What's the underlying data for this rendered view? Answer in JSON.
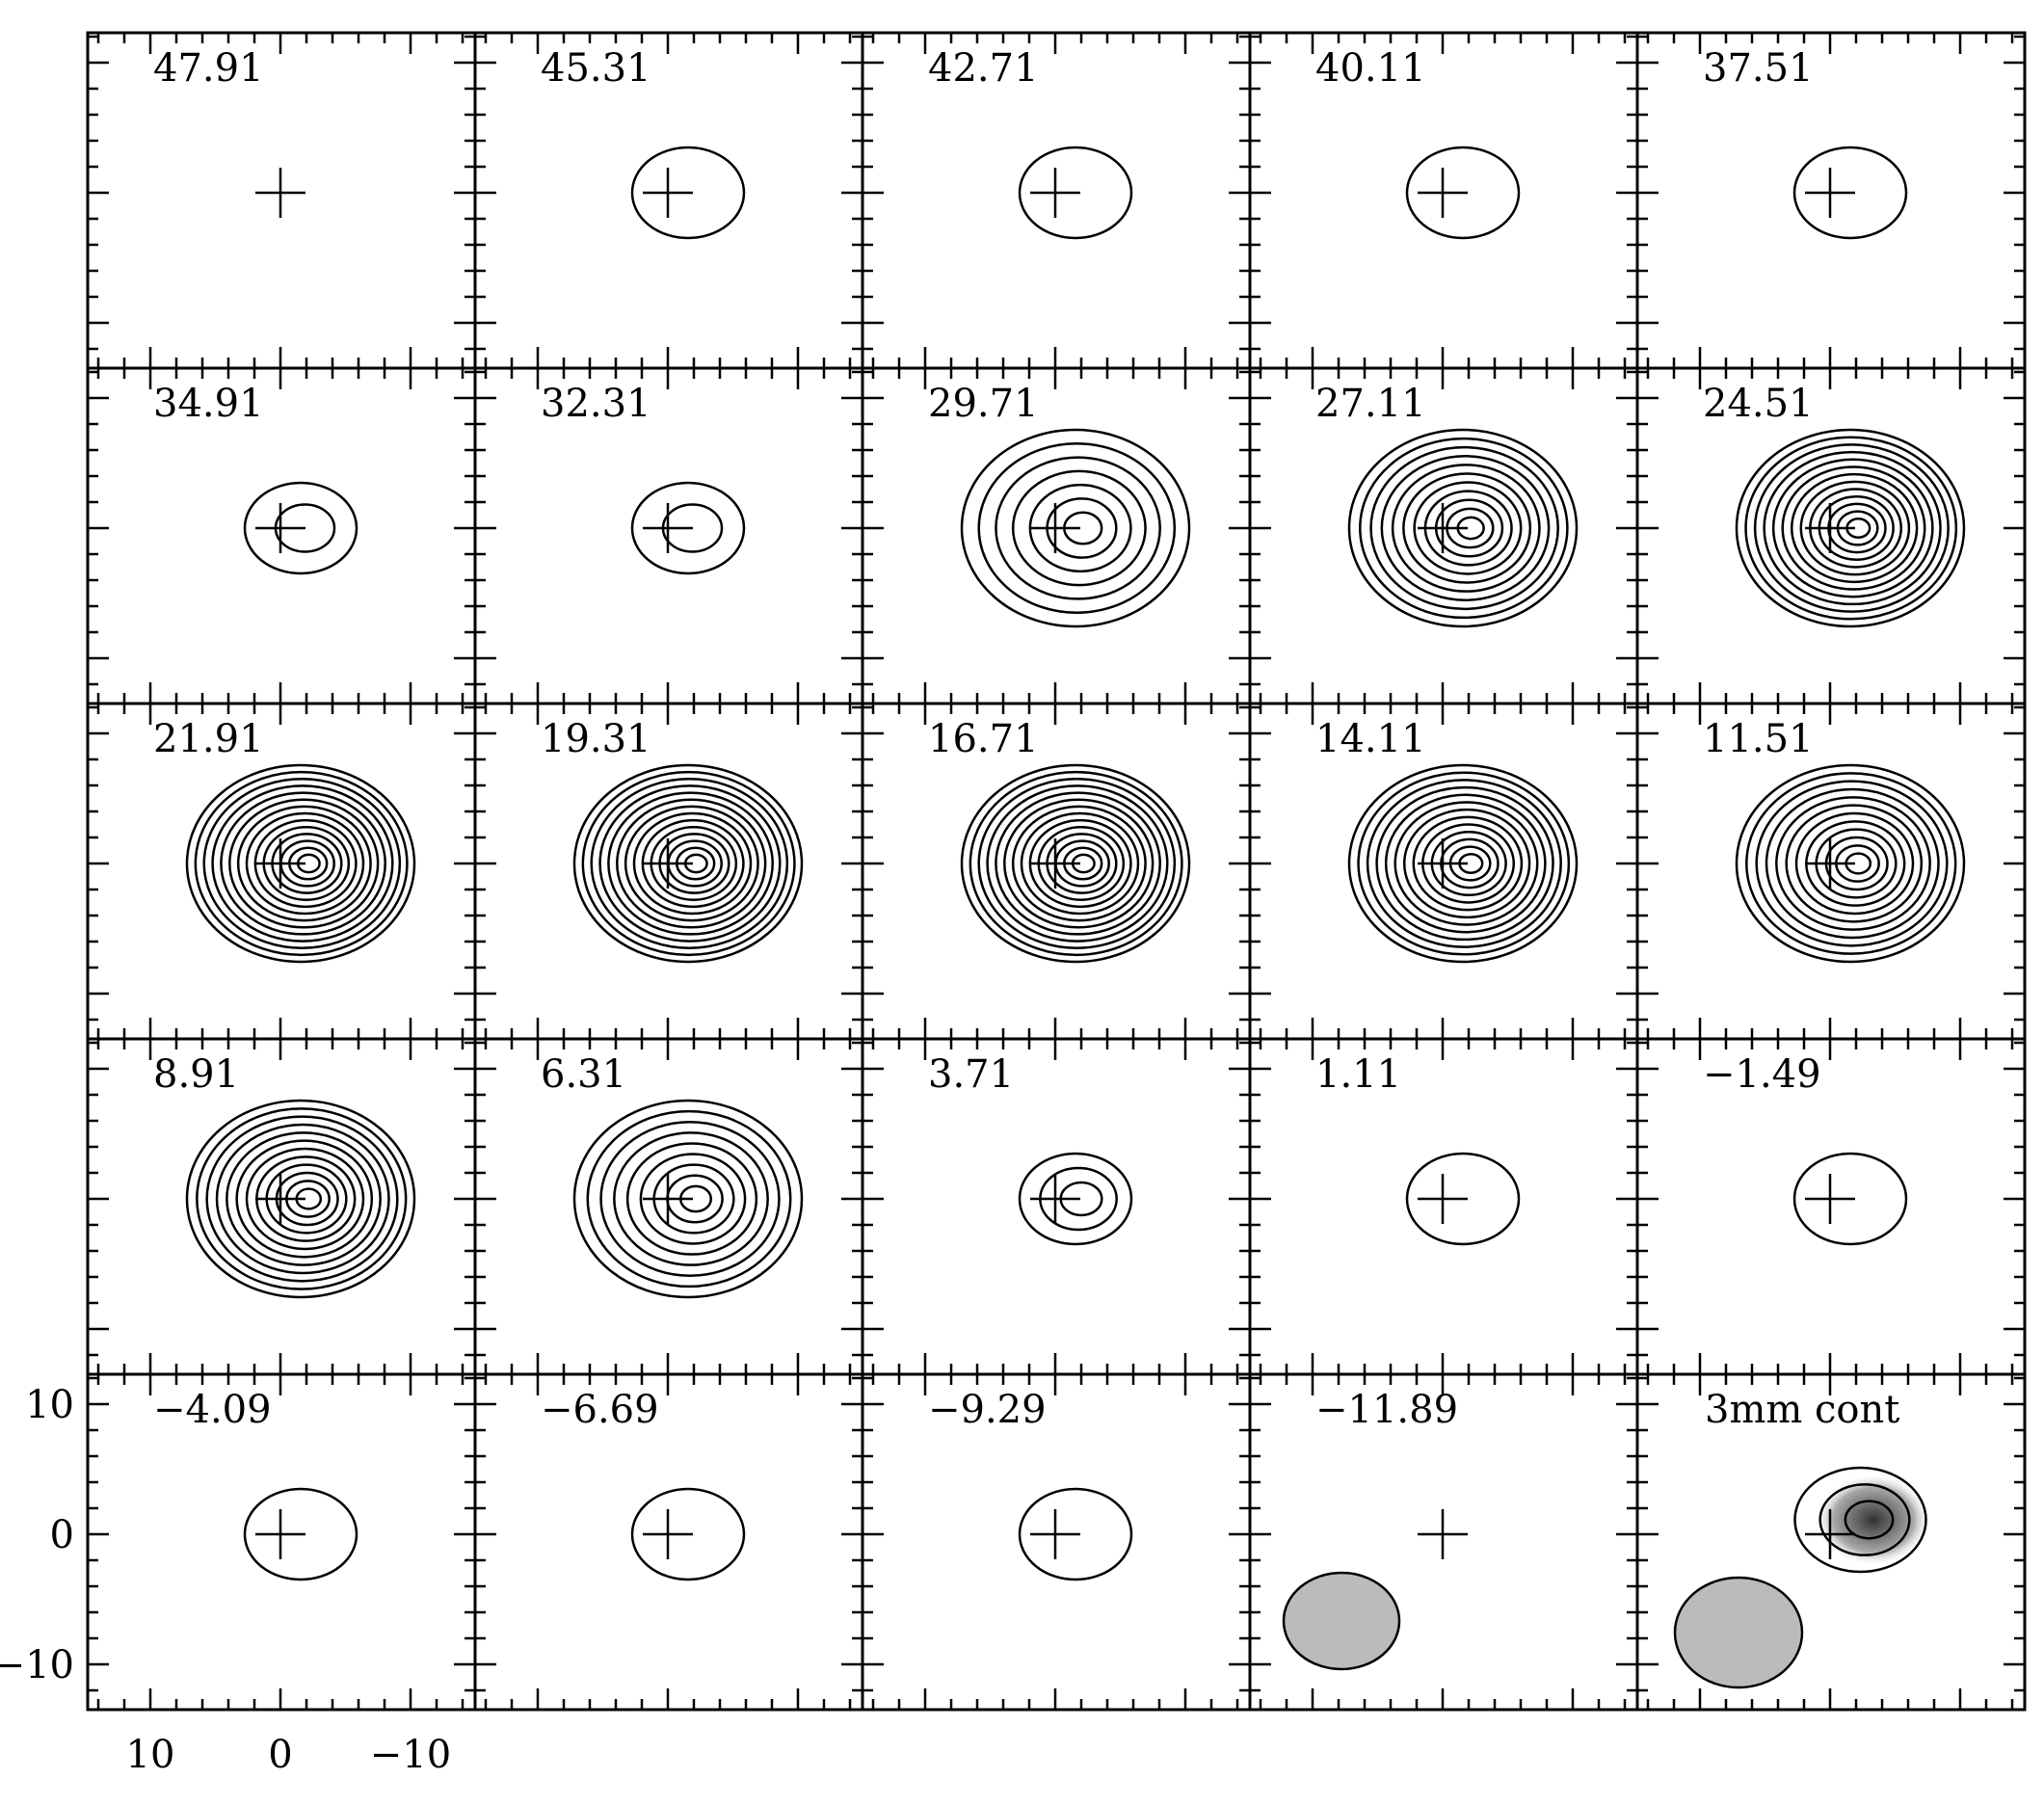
{
  "chart_data": {
    "type": "contour-channel-maps",
    "title": "",
    "layout": {
      "rows": 5,
      "cols": 5
    },
    "xlabel": "",
    "ylabel": "",
    "x_ticks": [
      "10",
      "0",
      "−10"
    ],
    "y_ticks": [
      "10",
      "0",
      "−10"
    ],
    "xlim": [
      15,
      -15
    ],
    "ylim": [
      -13,
      13
    ],
    "marker": "cross at (0,0)",
    "panel_labels": [
      "47.91",
      "45.31",
      "42.71",
      "40.11",
      "37.51",
      "34.91",
      "32.31",
      "29.71",
      "27.11",
      "24.51",
      "21.91",
      "19.31",
      "16.71",
      "14.11",
      "11.51",
      "8.91",
      "6.31",
      "3.71",
      "1.11",
      "−1.49",
      "−4.09",
      "−6.69",
      "−9.29",
      "−11.89",
      "3mm cont"
    ],
    "panels": [
      {
        "label": "47.91",
        "n_contours": 0
      },
      {
        "label": "45.31",
        "n_contours": 1
      },
      {
        "label": "42.71",
        "n_contours": 1
      },
      {
        "label": "40.11",
        "n_contours": 1
      },
      {
        "label": "37.51",
        "n_contours": 1
      },
      {
        "label": "34.91",
        "n_contours": 2
      },
      {
        "label": "32.31",
        "n_contours": 2
      },
      {
        "label": "29.71",
        "n_contours": 7
      },
      {
        "label": "27.11",
        "n_contours": 11
      },
      {
        "label": "24.51",
        "n_contours": 13
      },
      {
        "label": "21.91",
        "n_contours": 14
      },
      {
        "label": "19.31",
        "n_contours": 14
      },
      {
        "label": "16.71",
        "n_contours": 14
      },
      {
        "label": "14.11",
        "n_contours": 13
      },
      {
        "label": "11.51",
        "n_contours": 12
      },
      {
        "label": "8.91",
        "n_contours": 12
      },
      {
        "label": "6.31",
        "n_contours": 9
      },
      {
        "label": "3.71",
        "n_contours": 3
      },
      {
        "label": "1.11",
        "n_contours": 1
      },
      {
        "label": "−1.49",
        "n_contours": 1
      },
      {
        "label": "−4.09",
        "n_contours": 1
      },
      {
        "label": "−6.69",
        "n_contours": 1
      },
      {
        "label": "−9.29",
        "n_contours": 1
      },
      {
        "label": "−11.89",
        "n_contours": 0,
        "beam": true
      },
      {
        "label": "3mm cont",
        "n_contours": 3,
        "beam": true,
        "grayscale": true
      }
    ]
  }
}
